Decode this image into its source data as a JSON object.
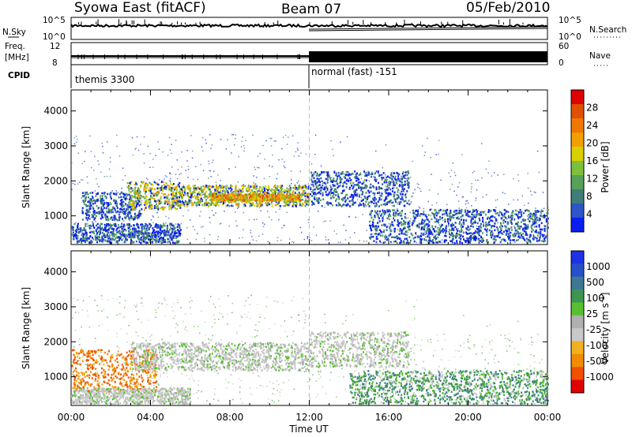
{
  "header": {
    "title": "Syowa East (fitACF)",
    "beam": "Beam 07",
    "date": "05/Feb/2010"
  },
  "top_panels": {
    "nsky_label": "N.Sky",
    "nsky_ticks": [
      "10^5",
      "10^0"
    ],
    "nsearch_label": "N.Search",
    "nsearch_ticks": [
      "10^5",
      "10^0"
    ],
    "freq_label_1": "Freq.",
    "freq_label_2": "[MHz]",
    "freq_ticks": [
      "12",
      "8"
    ],
    "nave_label": "Nave",
    "nave_ticks": [
      "60",
      "0"
    ],
    "cpid_label": "CPID",
    "cpid_segments": [
      {
        "label": "themis 3300",
        "start_hour": 0,
        "end_hour": 12
      },
      {
        "label": "normal (fast) -151",
        "start_hour": 12,
        "end_hour": 24
      }
    ]
  },
  "colors": {
    "power_scale": [
      "#0a1ef0",
      "#2d55c8",
      "#3e7d78",
      "#58a05a",
      "#7cc03c",
      "#d8d000",
      "#f0a000",
      "#f07800",
      "#e05000",
      "#e00000"
    ],
    "velocity_scale": [
      "#e00000",
      "#f05000",
      "#f08c00",
      "#f0b020",
      "#c8c8c8",
      "#b0b0b0",
      "#58c030",
      "#3c9650",
      "#3c7896",
      "#2850c8",
      "#1e32e6"
    ]
  },
  "chart_data": [
    {
      "type": "heatmap",
      "panel": "power",
      "xlabel": "",
      "ylabel": "Slant Range [km]",
      "ylim": [
        180,
        4600
      ],
      "xlim": [
        0,
        24
      ],
      "yticks": [
        "1000",
        "2000",
        "3000",
        "4000"
      ],
      "colorbar_label": "Power [dB]",
      "colorbar_ticks": [
        "4",
        "8",
        "12",
        "16",
        "20",
        "24",
        "28"
      ],
      "regions": [
        {
          "t0": 0.0,
          "t1": 5.5,
          "r0": 250,
          "r1": 800,
          "level": "low"
        },
        {
          "t0": 0.5,
          "t1": 3.5,
          "r0": 900,
          "r1": 1700,
          "level": "low"
        },
        {
          "t0": 2.8,
          "t1": 5.5,
          "r0": 1200,
          "r1": 2000,
          "level": "mid"
        },
        {
          "t0": 5.0,
          "t1": 12.0,
          "r0": 1300,
          "r1": 1900,
          "level": "mid"
        },
        {
          "t0": 7.0,
          "t1": 11.5,
          "r0": 1450,
          "r1": 1650,
          "level": "high"
        },
        {
          "t0": 12.0,
          "t1": 17.0,
          "r0": 1300,
          "r1": 2300,
          "level": "low"
        },
        {
          "t0": 15.0,
          "t1": 24.0,
          "r0": 250,
          "r1": 1200,
          "level": "low"
        }
      ]
    },
    {
      "type": "heatmap",
      "panel": "velocity",
      "xlabel": "Time UT",
      "ylabel": "Slant Range [km]",
      "ylim": [
        180,
        4600
      ],
      "xlim": [
        0,
        24
      ],
      "yticks": [
        "1000",
        "2000",
        "3000",
        "4000"
      ],
      "xticks": [
        "00:00",
        "04:00",
        "08:00",
        "12:00",
        "16:00",
        "20:00",
        "00:00"
      ],
      "colorbar_label": "Velocity [m s^-1]",
      "colorbar_ticks": [
        "-1000",
        "-500",
        "-100",
        "-25",
        "25",
        "100",
        "500",
        "1000"
      ],
      "regions": [
        {
          "t0": 0.0,
          "t1": 4.3,
          "r0": 600,
          "r1": 1800,
          "level": "neg_mid"
        },
        {
          "t0": 0.0,
          "t1": 6.0,
          "r0": 250,
          "r1": 700,
          "level": "near_zero"
        },
        {
          "t0": 3.0,
          "t1": 12.0,
          "r0": 1200,
          "r1": 2000,
          "level": "near_zero"
        },
        {
          "t0": 12.0,
          "t1": 17.0,
          "r0": 1300,
          "r1": 2300,
          "level": "near_zero"
        },
        {
          "t0": 14.0,
          "t1": 24.0,
          "r0": 250,
          "r1": 1200,
          "level": "pos_low"
        }
      ]
    }
  ]
}
